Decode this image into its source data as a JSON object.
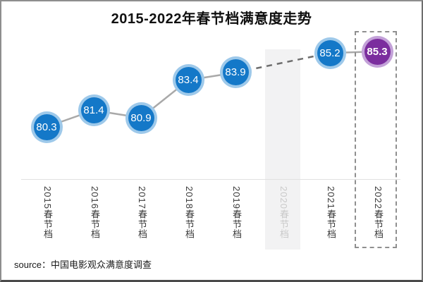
{
  "chart_data": {
    "type": "line",
    "title": "2015-2022年春节档满意度走势",
    "categories": [
      "2015春节档",
      "2016春节档",
      "2017春节档",
      "2018春节档",
      "2019春节档",
      "2020春节档",
      "2021春节档",
      "2022春节档"
    ],
    "values": [
      80.3,
      81.4,
      80.9,
      83.4,
      83.9,
      null,
      85.2,
      85.3
    ],
    "ylim": [
      79.5,
      86.5
    ],
    "grid": false,
    "legend": null,
    "muted_category": "2020春节档",
    "highlighted_category": "2022春节档",
    "gap_connector_style": "dashed"
  },
  "source": {
    "text": "source：中国电影观众满意度调查"
  },
  "colors": {
    "point_fill": "#1478c8",
    "point_ring": "#9ec9ea",
    "highlight_point_fill": "#7b2d9e",
    "highlight_point_ring": "#c3a1d8",
    "connector": "#a9a9a9",
    "connector_dashed": "#6e6e6e",
    "gap_band": "#f2f2f3",
    "axis_line": "#e0e0e0",
    "label_text": "#3a3a3a",
    "muted_label_text": "#c9c9c9",
    "title_text": "#111111",
    "value_text": "#ffffff"
  }
}
